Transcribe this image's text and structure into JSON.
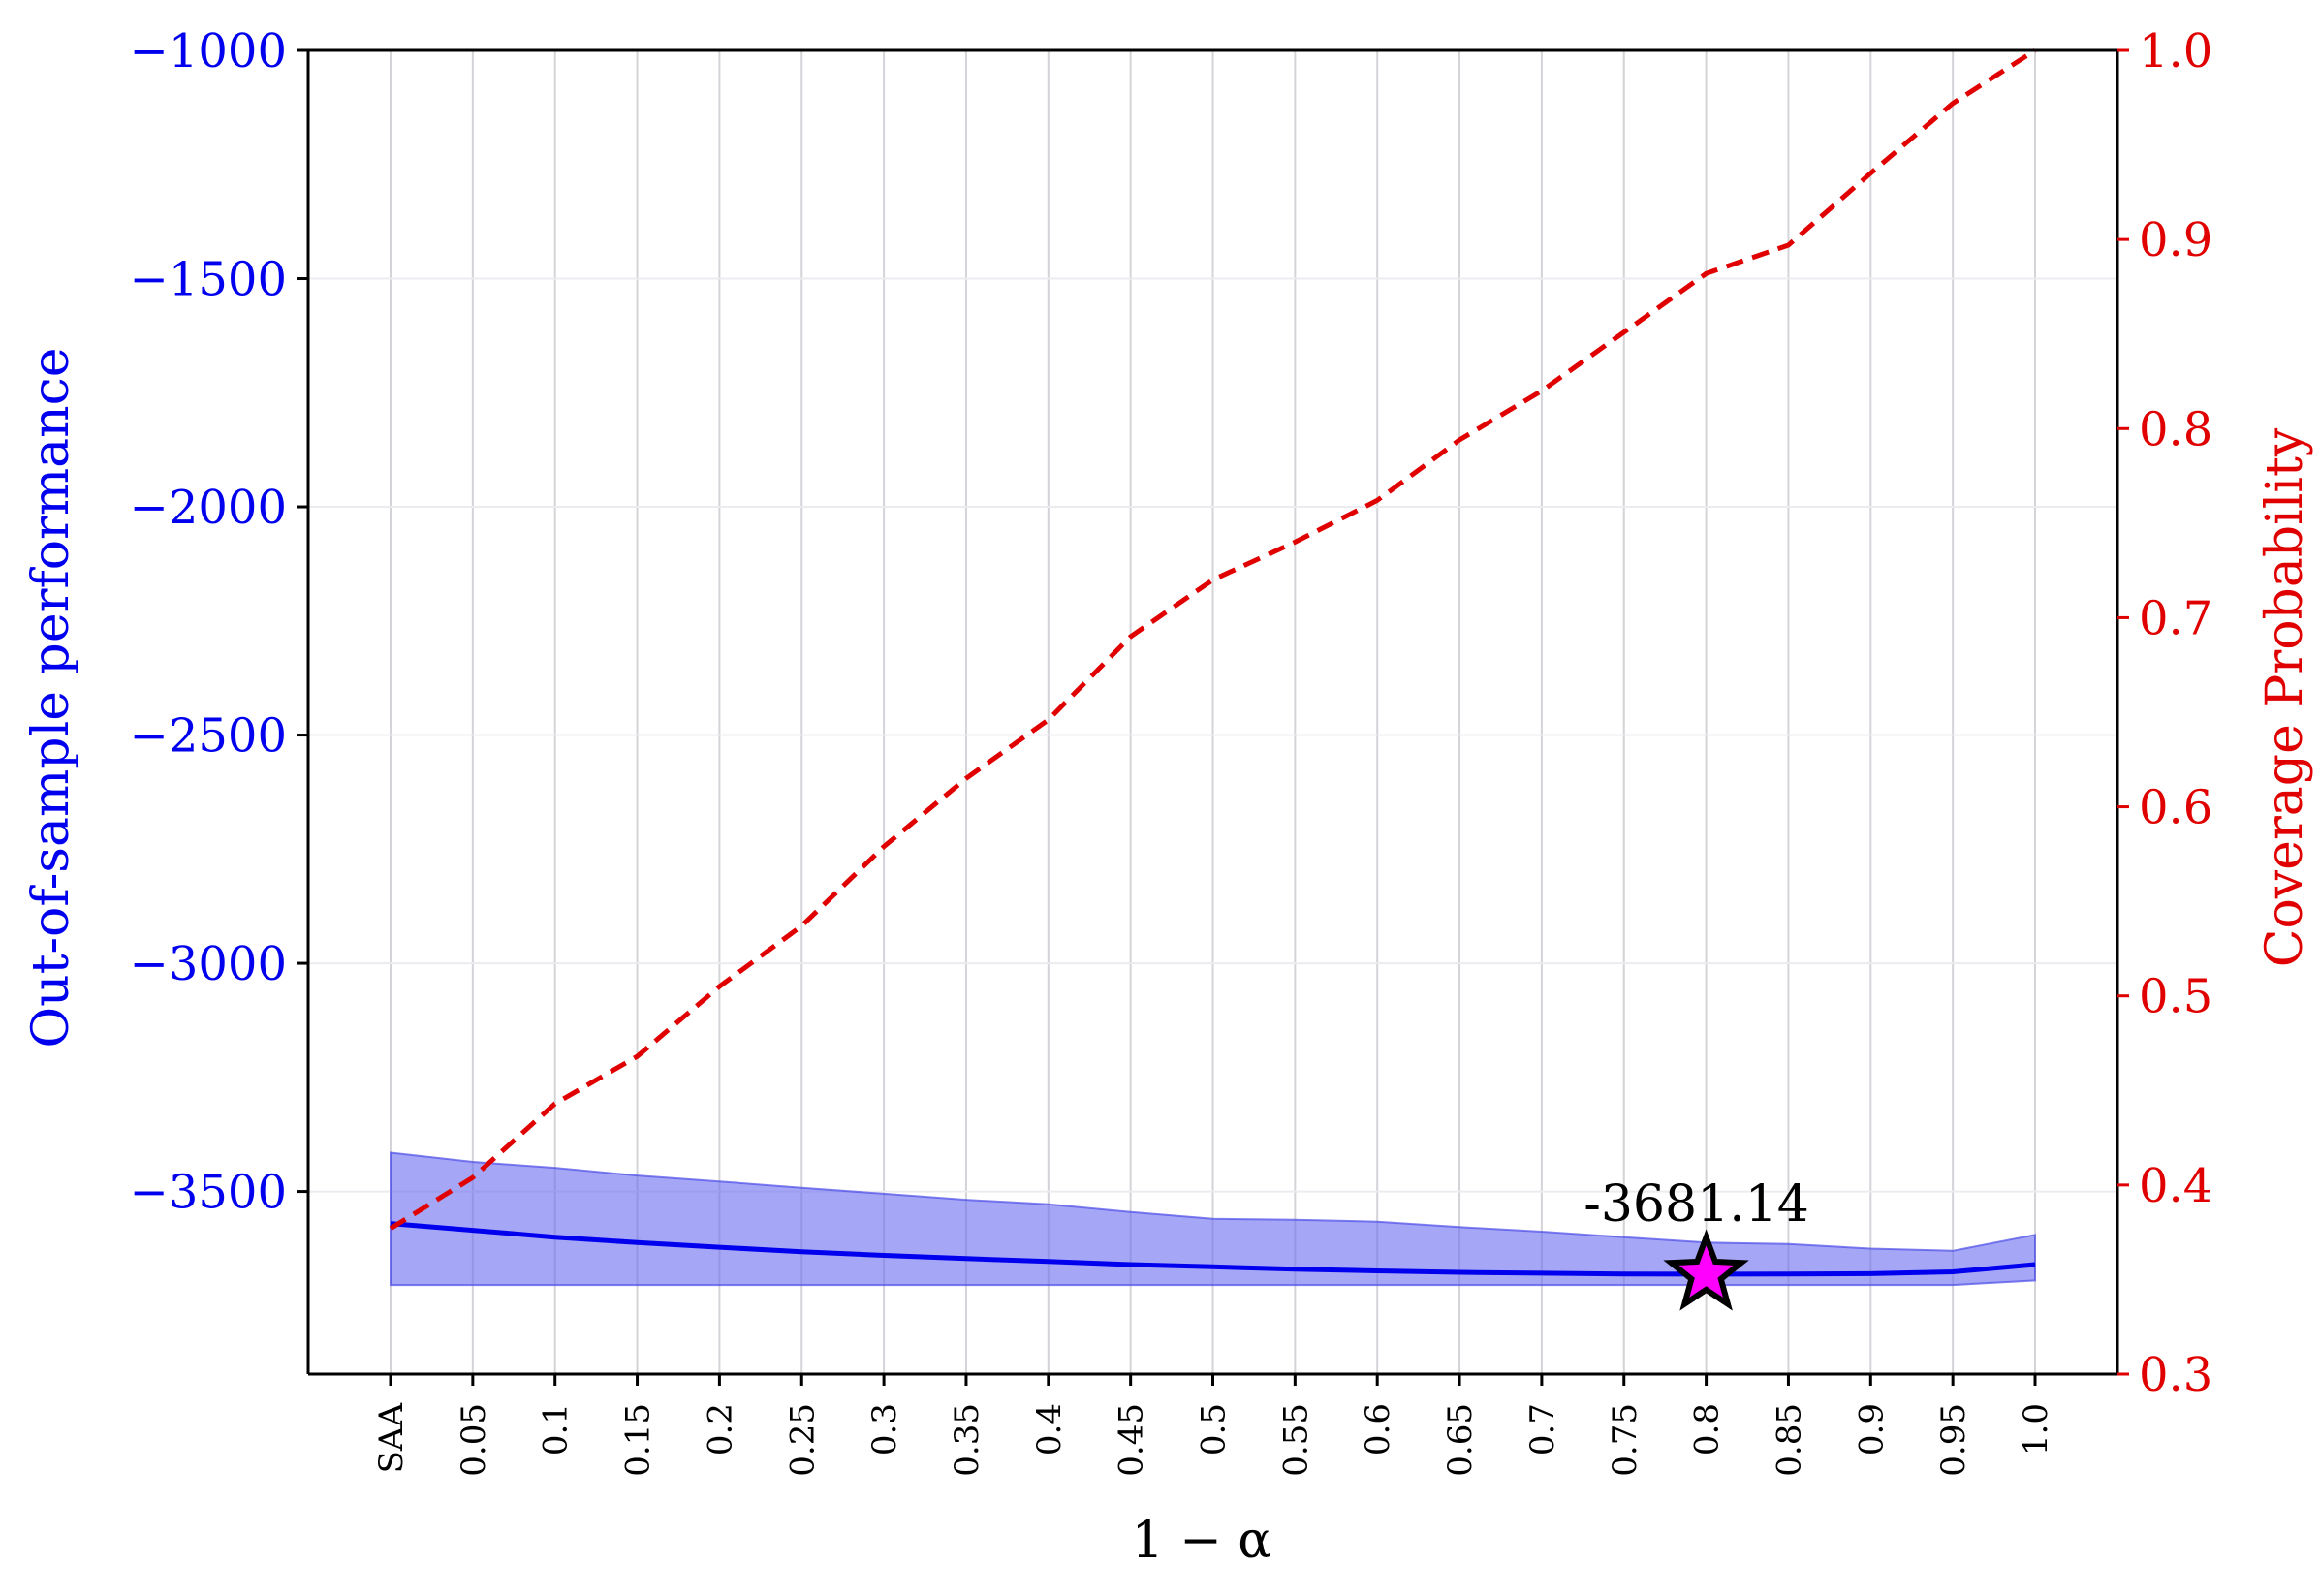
{
  "chart_data": {
    "type": "line",
    "xlabel": "1 − α",
    "ylabel_left": "Out-of-sample performance",
    "ylabel_right": "Coverage Probability",
    "categories": [
      "SAA",
      "0.05",
      "0.1",
      "0.15",
      "0.2",
      "0.25",
      "0.3",
      "0.35",
      "0.4",
      "0.45",
      "0.5",
      "0.55",
      "0.6",
      "0.65",
      "0.7",
      "0.75",
      "0.8",
      "0.85",
      "0.9",
      "0.95",
      "1.0"
    ],
    "ylim_left": [
      -3900,
      -1000
    ],
    "yticks_left": [
      -1000,
      -1500,
      -2000,
      -2500,
      -3000,
      -3500
    ],
    "yticks_left_labels": [
      "−1000",
      "−1500",
      "−2000",
      "−2500",
      "−3000",
      "−3500"
    ],
    "ylim_right": [
      0.3,
      1.0
    ],
    "yticks_right": [
      0.3,
      0.4,
      0.5,
      0.6,
      0.7,
      0.8,
      0.9,
      1.0
    ],
    "yticks_right_labels": [
      "0.3",
      "0.4",
      "0.5",
      "0.6",
      "0.7",
      "0.8",
      "0.9",
      "1.0"
    ],
    "grid": true,
    "colors": {
      "left_axis": "#0000ee",
      "right_axis": "#e00000",
      "band": "#6a6af0",
      "marker": "#ff00ff"
    },
    "series": [
      {
        "axis": "left",
        "style": "solid",
        "values": [
          -3570,
          -3585,
          -3600,
          -3612,
          -3622,
          -3632,
          -3640,
          -3647,
          -3653,
          -3660,
          -3665,
          -3670,
          -3674,
          -3677,
          -3679,
          -3681,
          -3681.14,
          -3681,
          -3680,
          -3676,
          -3660
        ]
      },
      {
        "axis": "left",
        "style": "band",
        "upper": [
          -3415,
          -3435,
          -3448,
          -3465,
          -3478,
          -3492,
          -3505,
          -3518,
          -3528,
          -3545,
          -3560,
          -3562,
          -3566,
          -3578,
          -3588,
          -3600,
          -3612,
          -3615,
          -3625,
          -3630,
          -3595
        ],
        "lower": [
          -3705,
          -3705,
          -3705,
          -3705,
          -3705,
          -3705,
          -3705,
          -3705,
          -3705,
          -3705,
          -3705,
          -3705,
          -3705,
          -3705,
          -3705,
          -3705,
          -3705,
          -3705,
          -3705,
          -3705,
          -3695
        ]
      },
      {
        "axis": "right",
        "style": "dashed",
        "values": [
          0.377,
          0.404,
          0.443,
          0.468,
          0.505,
          0.537,
          0.579,
          0.615,
          0.646,
          0.69,
          0.72,
          0.74,
          0.762,
          0.794,
          0.82,
          0.851,
          0.882,
          0.897,
          0.935,
          0.972,
          1.0
        ]
      }
    ],
    "annotations": [
      {
        "category": "0.8",
        "value": -3681.14,
        "text": "-3681.14",
        "marker": "star"
      }
    ]
  }
}
